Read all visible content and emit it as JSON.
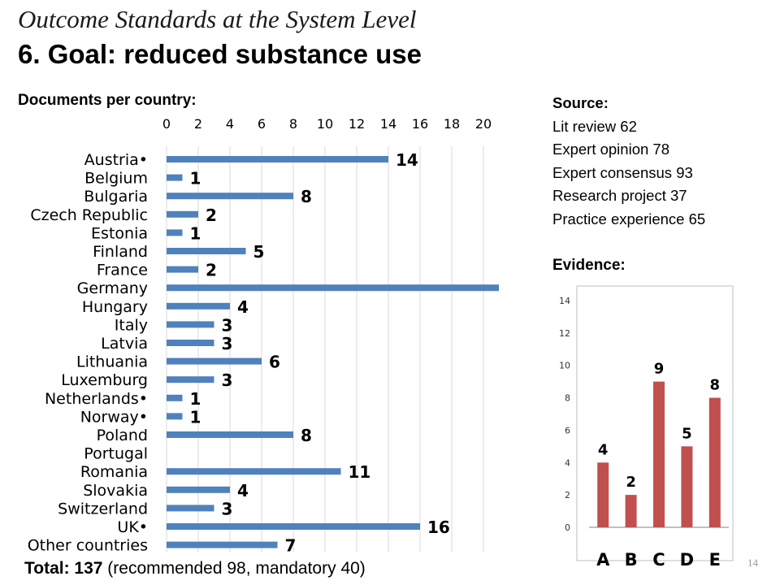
{
  "header": {
    "title": "Outcome Standards at the System Level",
    "subtitle": "6. Goal: reduced substance use"
  },
  "left": {
    "label": "Documents per country:"
  },
  "right": {
    "source_label": "Source:",
    "sources": [
      "Lit review 62",
      "Expert opinion 78",
      "Expert consensus 93",
      "Research project 37",
      "Practice experience 65"
    ],
    "evidence_label": "Evidence:"
  },
  "footer": {
    "total_label": "Total: 137",
    "total_detail": " (recommended 98, mandatory 40)",
    "page_number": "14"
  },
  "colors": {
    "bar_blue": "#4F81BD",
    "bar_red": "#C0504D",
    "grid": "#D9D9D9"
  },
  "chart_data": [
    {
      "type": "bar",
      "orientation": "horizontal",
      "categories": [
        "Austria•",
        "Belgium",
        "Bulgaria",
        "Czech Republic",
        "Estonia",
        "Finland",
        "France",
        "Germany",
        "Hungary",
        "Italy",
        "Latvia",
        "Lithuania",
        "Luxemburg",
        "Netherlands•",
        "Norway•",
        "Poland",
        "Portugal",
        "Romania",
        "Slovakia",
        "Switzerland",
        "UK•",
        "Other countries"
      ],
      "values": [
        14,
        1,
        8,
        2,
        1,
        5,
        2,
        21,
        4,
        3,
        3,
        6,
        3,
        1,
        1,
        8,
        0,
        11,
        4,
        3,
        16,
        7
      ],
      "data_labels": [
        "14",
        "1",
        "8",
        "2",
        "1",
        "5",
        "2",
        "",
        "4",
        "3",
        "3",
        "6",
        "3",
        "1",
        "1",
        "8",
        "",
        "11",
        "4",
        "3",
        "16",
        "7"
      ],
      "xlim": [
        0,
        20
      ],
      "xticks": [
        "0",
        "2",
        "4",
        "6",
        "8",
        "10",
        "12",
        "14",
        "16",
        "18",
        "20"
      ],
      "axis_position": "top",
      "grid": true,
      "color": "#4F81BD"
    },
    {
      "type": "bar",
      "categories": [
        "A",
        "B",
        "C",
        "D",
        "E"
      ],
      "values": [
        4,
        2,
        9,
        5,
        8
      ],
      "data_labels": [
        "4",
        "2",
        "9",
        "5",
        "8"
      ],
      "ylim": [
        0,
        14
      ],
      "yticks": [
        "0",
        "2",
        "4",
        "6",
        "8",
        "10",
        "12",
        "14"
      ],
      "grid": false,
      "color": "#C0504D"
    }
  ]
}
